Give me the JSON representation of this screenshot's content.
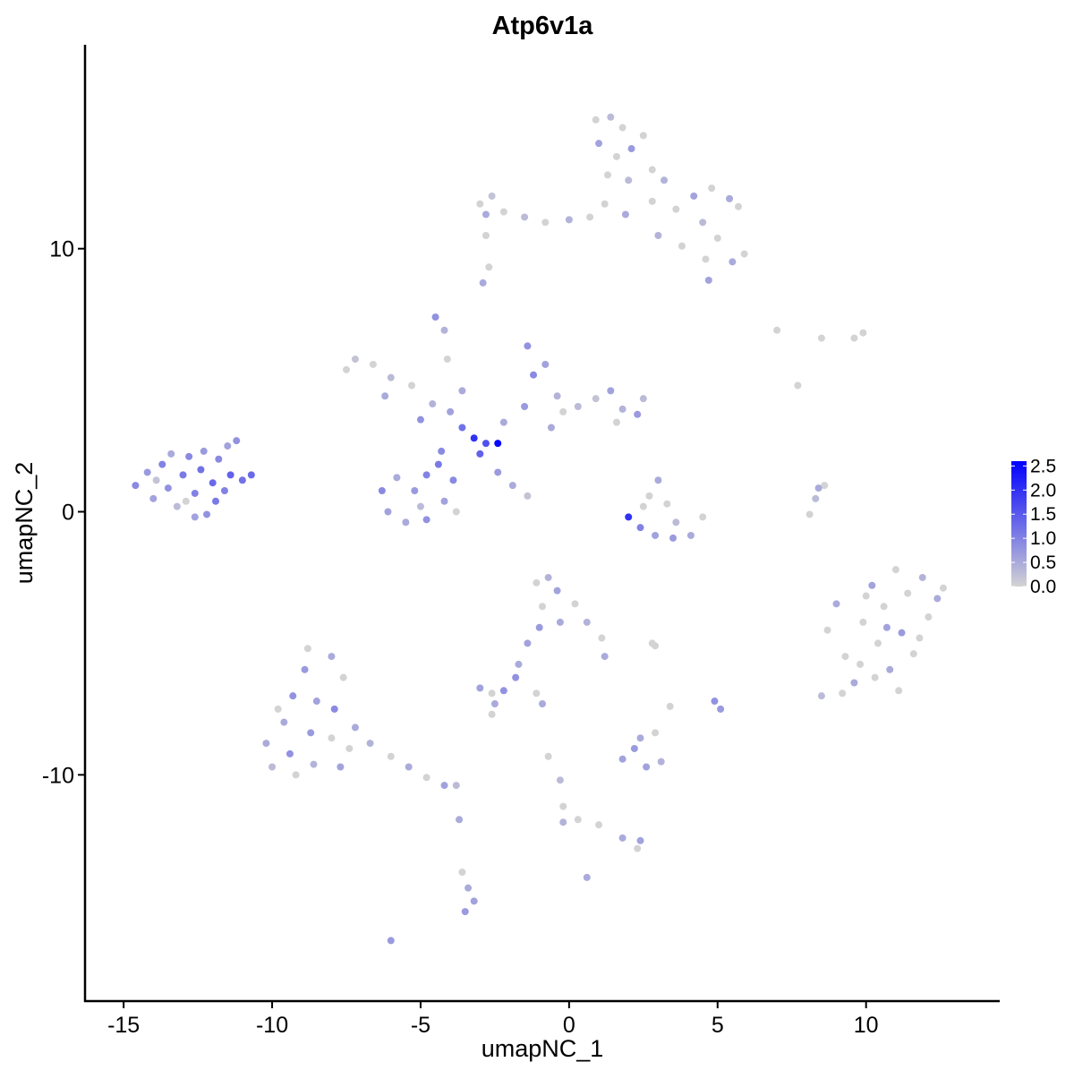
{
  "chart_data": {
    "type": "scatter",
    "title": "Atp6v1a",
    "xlabel": "umapNC_1",
    "ylabel": "umapNC_2",
    "xlim": [
      -16.3,
      14.5
    ],
    "ylim": [
      -18.6,
      17.75
    ],
    "xticks": [
      -15,
      -10,
      -5,
      0,
      5,
      10
    ],
    "yticks": [
      -10,
      0,
      10
    ],
    "grid": false,
    "legend": {
      "placement": "right",
      "type": "colorbar",
      "range": [
        0,
        2.6
      ],
      "ticks": [
        "0.0",
        "0.5",
        "1.0",
        "1.5",
        "2.0",
        "2.5"
      ],
      "tick_values": [
        0,
        0.5,
        1.0,
        1.5,
        2.0,
        2.5
      ],
      "low_color": "#D3D3D3",
      "high_color": "#0000FF"
    },
    "point_fields": [
      "umapNC_1",
      "umapNC_2",
      "expression"
    ],
    "points": [
      [
        -14.6,
        1.0,
        0.9
      ],
      [
        -14.2,
        1.5,
        0.7
      ],
      [
        -14.0,
        0.5,
        0.6
      ],
      [
        -13.7,
        1.8,
        1.0
      ],
      [
        -13.5,
        0.9,
        0.8
      ],
      [
        -13.2,
        0.2,
        0.3
      ],
      [
        -13.0,
        1.4,
        1.1
      ],
      [
        -12.8,
        2.1,
        0.9
      ],
      [
        -12.6,
        0.7,
        1.0
      ],
      [
        -12.4,
        1.6,
        1.2
      ],
      [
        -12.2,
        -0.1,
        0.8
      ],
      [
        -12.0,
        1.1,
        1.3
      ],
      [
        -11.8,
        2.0,
        0.9
      ],
      [
        -11.6,
        0.8,
        1.0
      ],
      [
        -11.4,
        1.4,
        1.4
      ],
      [
        -11.2,
        2.7,
        0.8
      ],
      [
        -11.0,
        1.2,
        1.2
      ],
      [
        -10.7,
        1.4,
        1.3
      ],
      [
        -13.9,
        1.2,
        0.2
      ],
      [
        -12.9,
        0.4,
        0.0
      ],
      [
        -12.3,
        2.3,
        0.7
      ],
      [
        -13.4,
        2.2,
        0.5
      ],
      [
        -11.9,
        0.4,
        1.1
      ],
      [
        -12.6,
        -0.2,
        0.6
      ],
      [
        -11.5,
        2.5,
        0.6
      ],
      [
        -3.2,
        2.8,
        2.0
      ],
      [
        -2.8,
        2.6,
        1.6
      ],
      [
        -2.4,
        2.6,
        2.5
      ],
      [
        -3.6,
        3.2,
        1.2
      ],
      [
        -3.0,
        2.2,
        1.4
      ],
      [
        -4.0,
        3.8,
        0.6
      ],
      [
        -4.6,
        4.1,
        0.4
      ],
      [
        -5.3,
        4.8,
        0.0
      ],
      [
        -6.0,
        5.1,
        0.3
      ],
      [
        -6.6,
        5.6,
        0.0
      ],
      [
        -7.2,
        5.8,
        0.2
      ],
      [
        -7.5,
        5.4,
        0.0
      ],
      [
        -6.2,
        4.4,
        0.5
      ],
      [
        -5.0,
        3.5,
        0.8
      ],
      [
        -4.3,
        2.3,
        0.9
      ],
      [
        -4.8,
        1.4,
        1.0
      ],
      [
        -5.2,
        0.8,
        0.7
      ],
      [
        -5.8,
        1.3,
        0.5
      ],
      [
        -6.3,
        0.8,
        0.9
      ],
      [
        -6.1,
        0.0,
        0.6
      ],
      [
        -5.5,
        -0.4,
        0.5
      ],
      [
        -4.8,
        -0.3,
        0.8
      ],
      [
        -4.2,
        0.4,
        0.6
      ],
      [
        -3.9,
        1.2,
        0.9
      ],
      [
        -5.0,
        0.2,
        0.3
      ],
      [
        -4.4,
        1.8,
        1.1
      ],
      [
        -3.8,
        0.0,
        0.0
      ],
      [
        -2.2,
        3.4,
        0.5
      ],
      [
        -1.5,
        4.0,
        0.7
      ],
      [
        -1.2,
        5.2,
        0.9
      ],
      [
        -1.4,
        6.3,
        0.8
      ],
      [
        -0.8,
        5.6,
        0.6
      ],
      [
        -0.4,
        4.4,
        0.4
      ],
      [
        0.3,
        4.0,
        0.3
      ],
      [
        0.9,
        4.3,
        0.2
      ],
      [
        1.4,
        4.6,
        0.6
      ],
      [
        1.8,
        3.9,
        0.4
      ],
      [
        2.3,
        3.7,
        0.7
      ],
      [
        2.5,
        4.3,
        0.3
      ],
      [
        1.6,
        3.4,
        0.0
      ],
      [
        -0.6,
        3.2,
        0.5
      ],
      [
        -0.2,
        3.8,
        0.0
      ],
      [
        -4.5,
        7.4,
        0.8
      ],
      [
        -4.2,
        6.9,
        0.4
      ],
      [
        -4.1,
        5.8,
        0.0
      ],
      [
        -3.6,
        4.6,
        0.5
      ],
      [
        -2.4,
        1.5,
        0.7
      ],
      [
        -1.9,
        1.0,
        0.5
      ],
      [
        -1.4,
        0.6,
        0.2
      ],
      [
        -3.0,
        11.7,
        0.0
      ],
      [
        -2.6,
        12.0,
        0.2
      ],
      [
        -2.8,
        11.3,
        0.5
      ],
      [
        -2.2,
        11.4,
        0.0
      ],
      [
        -1.5,
        11.2,
        0.3
      ],
      [
        -0.8,
        11.0,
        0.0
      ],
      [
        0.0,
        11.1,
        0.4
      ],
      [
        0.7,
        11.2,
        0.0
      ],
      [
        -2.8,
        10.5,
        0.0
      ],
      [
        -2.9,
        8.7,
        0.5
      ],
      [
        -2.7,
        9.3,
        0.0
      ],
      [
        0.9,
        14.9,
        0.0
      ],
      [
        1.4,
        15.0,
        0.3
      ],
      [
        1.8,
        14.6,
        0.0
      ],
      [
        1.0,
        14.0,
        0.6
      ],
      [
        1.6,
        13.5,
        0.0
      ],
      [
        2.1,
        13.8,
        0.7
      ],
      [
        1.3,
        12.8,
        0.0
      ],
      [
        2.0,
        12.6,
        0.3
      ],
      [
        2.5,
        14.3,
        0.0
      ],
      [
        2.8,
        13.0,
        0.0
      ],
      [
        1.2,
        11.7,
        0.0
      ],
      [
        1.9,
        11.3,
        0.5
      ],
      [
        2.8,
        11.8,
        0.0
      ],
      [
        3.2,
        12.6,
        0.4
      ],
      [
        3.6,
        11.5,
        0.0
      ],
      [
        4.2,
        12.0,
        0.6
      ],
      [
        4.8,
        12.3,
        0.0
      ],
      [
        5.4,
        11.9,
        0.5
      ],
      [
        5.7,
        11.6,
        0.0
      ],
      [
        4.5,
        11.0,
        0.3
      ],
      [
        5.0,
        10.4,
        0.0
      ],
      [
        4.6,
        9.6,
        0.0
      ],
      [
        5.5,
        9.5,
        0.5
      ],
      [
        5.9,
        9.8,
        0.0
      ],
      [
        4.7,
        8.8,
        0.6
      ],
      [
        3.8,
        10.1,
        0.0
      ],
      [
        3.0,
        10.5,
        0.4
      ],
      [
        7.0,
        6.9,
        0.0
      ],
      [
        8.5,
        6.6,
        0.0
      ],
      [
        9.6,
        6.6,
        0.0
      ],
      [
        9.9,
        6.8,
        0.0
      ],
      [
        7.7,
        4.8,
        0.0
      ],
      [
        8.1,
        -0.1,
        0.0
      ],
      [
        8.3,
        0.5,
        0.3
      ],
      [
        8.6,
        1.0,
        0.0
      ],
      [
        8.4,
        0.9,
        0.5
      ],
      [
        2.0,
        -0.2,
        2.0
      ],
      [
        2.4,
        -0.6,
        1.0
      ],
      [
        2.9,
        -0.9,
        0.6
      ],
      [
        3.5,
        -1.0,
        0.7
      ],
      [
        4.1,
        -0.9,
        0.5
      ],
      [
        4.5,
        -0.2,
        0.0
      ],
      [
        2.7,
        0.6,
        0.0
      ],
      [
        3.0,
        1.2,
        0.5
      ],
      [
        3.3,
        0.3,
        0.0
      ],
      [
        3.6,
        -0.4,
        0.3
      ],
      [
        2.5,
        0.2,
        0.0
      ],
      [
        8.7,
        -4.5,
        0.0
      ],
      [
        9.0,
        -3.5,
        0.5
      ],
      [
        9.3,
        -5.5,
        0.0
      ],
      [
        9.6,
        -6.5,
        0.5
      ],
      [
        9.9,
        -4.2,
        0.0
      ],
      [
        10.2,
        -2.8,
        0.6
      ],
      [
        10.4,
        -5.0,
        0.0
      ],
      [
        10.6,
        -3.6,
        0.0
      ],
      [
        10.8,
        -6.0,
        0.5
      ],
      [
        11.0,
        -2.2,
        0.0
      ],
      [
        11.2,
        -4.6,
        0.7
      ],
      [
        11.4,
        -3.1,
        0.0
      ],
      [
        11.6,
        -5.4,
        0.0
      ],
      [
        11.9,
        -2.5,
        0.4
      ],
      [
        12.1,
        -4.0,
        0.0
      ],
      [
        12.4,
        -3.3,
        0.5
      ],
      [
        12.6,
        -2.9,
        0.0
      ],
      [
        9.8,
        -5.8,
        0.0
      ],
      [
        10.0,
        -3.2,
        0.0
      ],
      [
        11.1,
        -6.8,
        0.0
      ],
      [
        8.5,
        -7.0,
        0.3
      ],
      [
        9.2,
        -6.9,
        0.0
      ],
      [
        10.7,
        -4.4,
        0.6
      ],
      [
        11.8,
        -4.8,
        0.0
      ],
      [
        10.3,
        -6.3,
        0.0
      ],
      [
        -8.8,
        -5.2,
        0.0
      ],
      [
        -8.0,
        -5.5,
        0.5
      ],
      [
        -8.9,
        -6.0,
        0.7
      ],
      [
        -7.6,
        -6.3,
        0.0
      ],
      [
        -9.3,
        -7.0,
        0.8
      ],
      [
        -8.5,
        -7.2,
        0.6
      ],
      [
        -7.9,
        -7.5,
        0.9
      ],
      [
        -9.6,
        -8.0,
        0.5
      ],
      [
        -8.7,
        -8.4,
        0.7
      ],
      [
        -8.0,
        -8.6,
        0.0
      ],
      [
        -10.2,
        -8.8,
        0.5
      ],
      [
        -9.4,
        -9.2,
        0.8
      ],
      [
        -8.6,
        -9.6,
        0.4
      ],
      [
        -7.7,
        -9.7,
        0.6
      ],
      [
        -10.0,
        -9.7,
        0.3
      ],
      [
        -9.2,
        -10.0,
        0.0
      ],
      [
        -7.2,
        -8.2,
        0.5
      ],
      [
        -6.7,
        -8.8,
        0.4
      ],
      [
        -6.0,
        -9.3,
        0.0
      ],
      [
        -5.4,
        -9.7,
        0.5
      ],
      [
        -4.8,
        -10.1,
        0.0
      ],
      [
        -4.2,
        -10.4,
        0.6
      ],
      [
        -3.8,
        -10.4,
        0.3
      ],
      [
        -9.8,
        -7.5,
        0.0
      ],
      [
        -7.4,
        -9.0,
        0.0
      ],
      [
        -1.1,
        -2.7,
        0.0
      ],
      [
        -0.7,
        -2.5,
        0.4
      ],
      [
        -0.4,
        -3.0,
        0.6
      ],
      [
        -0.9,
        -3.6,
        0.0
      ],
      [
        -0.3,
        -4.2,
        0.5
      ],
      [
        0.2,
        -3.5,
        0.0
      ],
      [
        0.6,
        -4.2,
        0.4
      ],
      [
        1.1,
        -4.8,
        0.0
      ],
      [
        1.2,
        -5.5,
        0.5
      ],
      [
        -1.0,
        -4.4,
        0.7
      ],
      [
        -1.4,
        -5.0,
        0.6
      ],
      [
        -1.7,
        -5.8,
        0.5
      ],
      [
        -1.8,
        -6.3,
        0.8
      ],
      [
        2.8,
        -5.0,
        0.0
      ],
      [
        2.9,
        -5.1,
        0.0
      ],
      [
        -3.0,
        -6.7,
        0.6
      ],
      [
        -2.6,
        -6.9,
        0.0
      ],
      [
        -2.2,
        -6.8,
        0.8
      ],
      [
        -2.5,
        -7.3,
        0.5
      ],
      [
        -1.1,
        -6.9,
        0.0
      ],
      [
        -0.9,
        -7.3,
        0.5
      ],
      [
        -2.6,
        -7.7,
        0.0
      ],
      [
        1.8,
        -9.4,
        0.6
      ],
      [
        2.2,
        -9.0,
        0.7
      ],
      [
        2.4,
        -8.6,
        0.5
      ],
      [
        2.6,
        -9.7,
        0.6
      ],
      [
        3.1,
        -9.5,
        0.4
      ],
      [
        2.9,
        -8.4,
        0.0
      ],
      [
        3.4,
        -7.4,
        0.0
      ],
      [
        4.9,
        -7.2,
        0.8
      ],
      [
        5.1,
        -7.5,
        0.7
      ],
      [
        -0.7,
        -9.3,
        0.0
      ],
      [
        -0.3,
        -10.2,
        0.3
      ],
      [
        -0.2,
        -11.2,
        0.0
      ],
      [
        -0.2,
        -11.8,
        0.4
      ],
      [
        0.3,
        -11.7,
        0.0
      ],
      [
        1.0,
        -11.9,
        0.0
      ],
      [
        1.8,
        -12.4,
        0.5
      ],
      [
        2.4,
        -12.5,
        0.6
      ],
      [
        2.3,
        -12.8,
        0.0
      ],
      [
        0.6,
        -13.9,
        0.5
      ],
      [
        -3.7,
        -11.7,
        0.5
      ],
      [
        -3.6,
        -13.7,
        0.0
      ],
      [
        -3.4,
        -14.3,
        0.5
      ],
      [
        -3.2,
        -14.8,
        0.6
      ],
      [
        -3.5,
        -15.2,
        0.7
      ],
      [
        -6.0,
        -16.3,
        0.7
      ]
    ]
  }
}
